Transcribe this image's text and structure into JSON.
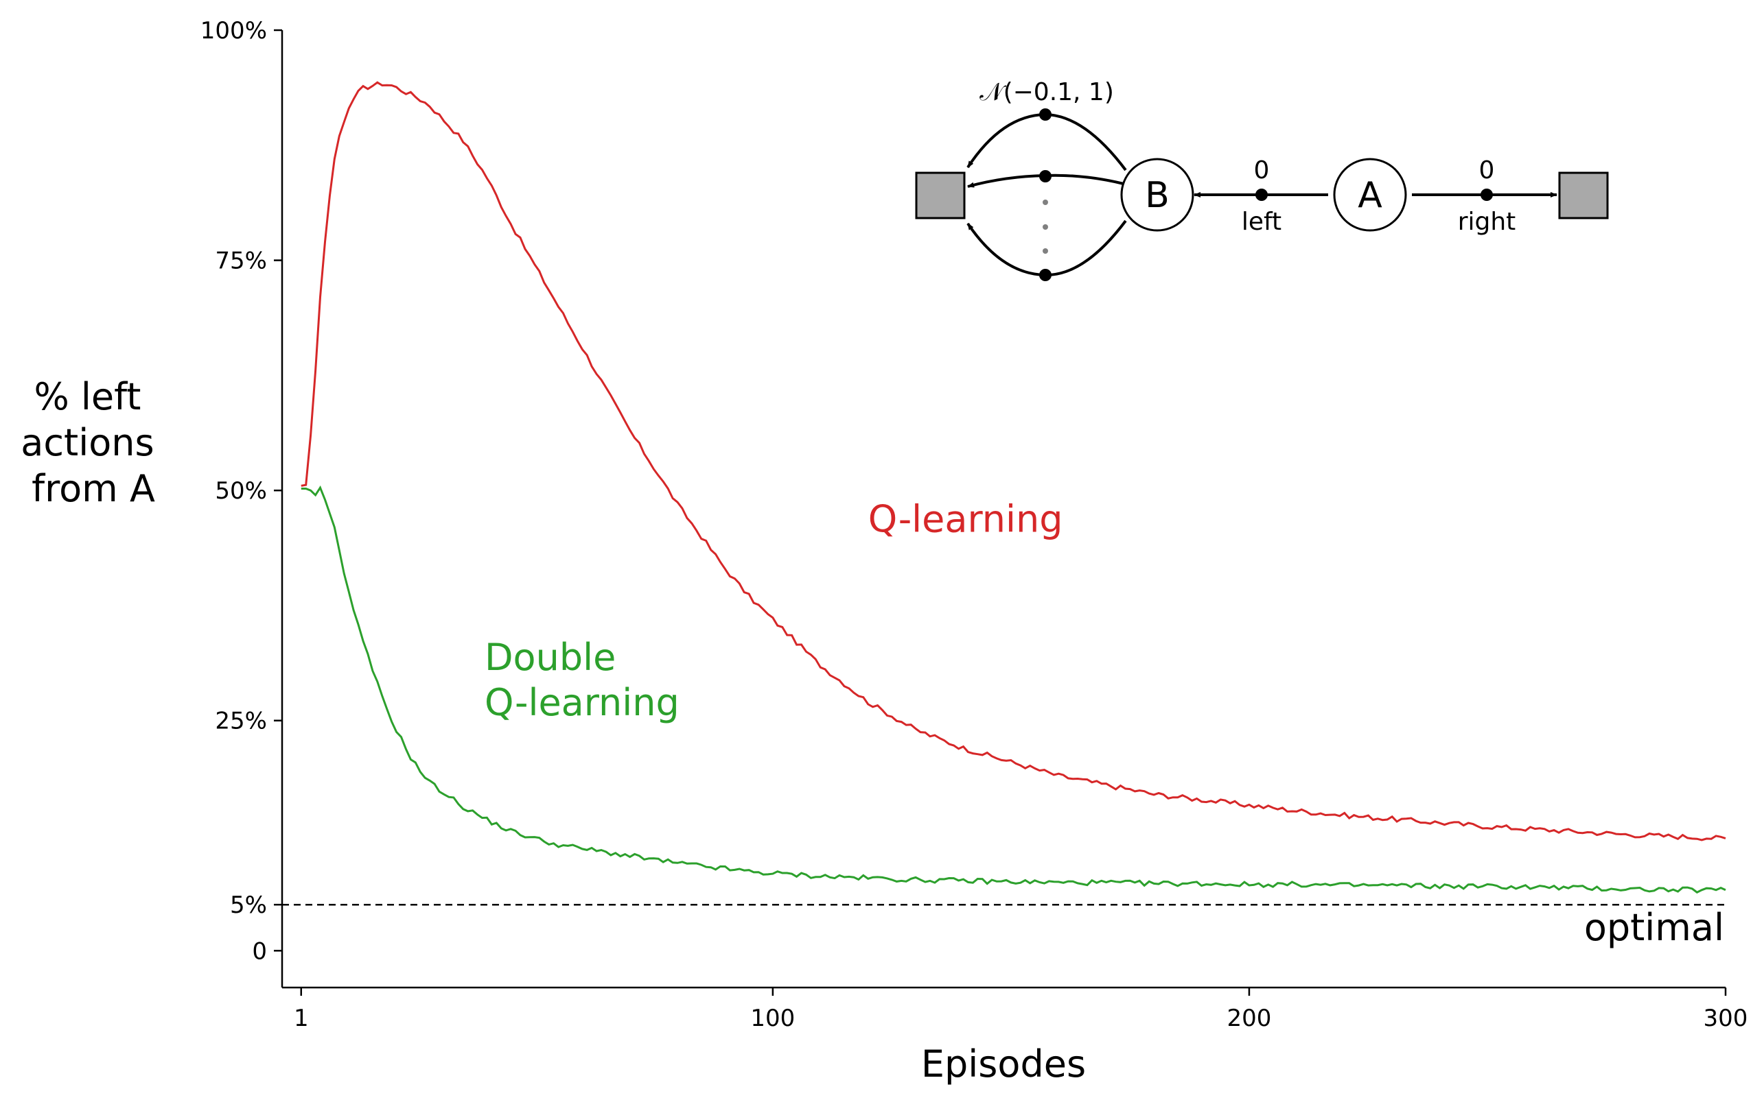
{
  "chart_data": {
    "type": "line",
    "title": "",
    "xlabel": "Episodes",
    "ylabel_lines": [
      "% left",
      "actions",
      "from A"
    ],
    "xlim": [
      -3,
      300
    ],
    "ylim": [
      -4,
      100
    ],
    "x_ticks": [
      {
        "value": 1,
        "label": "1"
      },
      {
        "value": 100,
        "label": "100"
      },
      {
        "value": 200,
        "label": "200"
      },
      {
        "value": 300,
        "label": "300"
      }
    ],
    "y_ticks": [
      {
        "value": 0,
        "label": "0"
      },
      {
        "value": 5,
        "label": "5%"
      },
      {
        "value": 25,
        "label": "25%"
      },
      {
        "value": 50,
        "label": "50%"
      },
      {
        "value": 75,
        "label": "75%"
      },
      {
        "value": 100,
        "label": "100%"
      }
    ],
    "grid": false,
    "series": [
      {
        "name": "Q-learning",
        "color": "#d62728",
        "x": [
          1,
          2,
          3,
          4,
          5,
          6,
          7,
          8,
          9,
          10,
          11,
          12,
          13,
          14,
          16,
          18,
          20,
          22,
          25,
          28,
          31,
          35,
          40,
          45,
          50,
          55,
          60,
          65,
          70,
          75,
          80,
          85,
          90,
          95,
          100,
          110,
          120,
          130,
          140,
          150,
          160,
          170,
          180,
          190,
          200,
          210,
          220,
          230,
          240,
          250,
          260,
          270,
          280,
          290,
          300
        ],
        "values": [
          50.5,
          50.6,
          56,
          63,
          71,
          77,
          82,
          86,
          88.5,
          90,
          91.5,
          92.5,
          93.2,
          93.7,
          94,
          94.2,
          94,
          93.5,
          92.8,
          91.8,
          90.2,
          88,
          84,
          79,
          74.5,
          70,
          65.5,
          61,
          56.5,
          52.5,
          48.5,
          45,
          41.5,
          38.5,
          36,
          31,
          27,
          24,
          22,
          20.5,
          19,
          18,
          17,
          16.4,
          15.8,
          15.2,
          14.7,
          14.3,
          13.9,
          13.5,
          13.2,
          12.9,
          12.6,
          12.4,
          12.2
        ]
      },
      {
        "name": "Double Q-learning",
        "color": "#2ca02c",
        "x": [
          1,
          2,
          3,
          4,
          5,
          6,
          7,
          8,
          9,
          10,
          12,
          14,
          16,
          18,
          20,
          22,
          24,
          26,
          28,
          30,
          32,
          34,
          36,
          38,
          40,
          45,
          50,
          55,
          60,
          65,
          70,
          75,
          80,
          85,
          90,
          95,
          100,
          110,
          120,
          130,
          140,
          150,
          160,
          170,
          180,
          190,
          200,
          210,
          220,
          230,
          240,
          250,
          260,
          270,
          280,
          290,
          300
        ],
        "values": [
          50.2,
          50.2,
          50,
          49.5,
          50.3,
          49,
          47.5,
          46,
          43.5,
          41,
          37,
          33.5,
          30.5,
          27.5,
          25,
          23,
          21,
          19.5,
          18.3,
          17.5,
          16.8,
          16,
          15.3,
          14.8,
          14.2,
          13,
          12.2,
          11.5,
          11.1,
          10.7,
          10.3,
          9.9,
          9.5,
          9.2,
          8.9,
          8.6,
          8.4,
          8.1,
          7.9,
          7.7,
          7.6,
          7.5,
          7.4,
          7.4,
          7.3,
          7.3,
          7.2,
          7.2,
          7.1,
          7.1,
          7.0,
          7.0,
          6.9,
          6.8,
          6.7,
          6.6,
          6.6
        ]
      }
    ],
    "reference_line": {
      "value": 5,
      "label": "optimal",
      "style": "dashed",
      "color": "#000000"
    },
    "annotations": [
      {
        "lines": [
          "Q-learning"
        ],
        "color": "#d62728",
        "x": 120,
        "y": 45.5
      },
      {
        "lines": [
          "Double",
          "Q-learning"
        ],
        "color": "#2ca02c",
        "x": 39.5,
        "y": 30.5
      }
    ],
    "inset": {
      "distribution": "𝒩(−0.1, 1)",
      "state_a": "A",
      "state_b": "B",
      "left_reward": "0",
      "left_label": "left",
      "right_reward": "0",
      "right_label": "right",
      "terminal_fill": "#a9a9a9"
    }
  }
}
